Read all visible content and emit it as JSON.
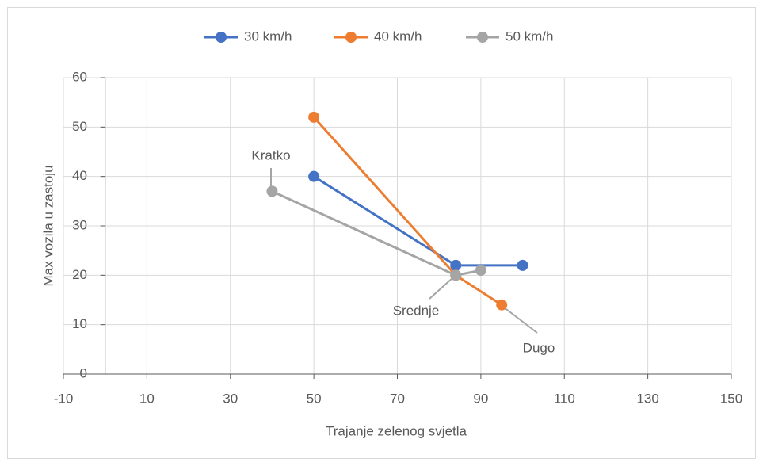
{
  "chart_data": {
    "type": "line",
    "xlabel": "Trajanje zelenog svjetla",
    "ylabel": "Max vozila u zastoju",
    "series": [
      {
        "name": "30 km/h",
        "color": "#4472c4",
        "x": [
          50,
          84,
          100
        ],
        "values": [
          40,
          22,
          22
        ]
      },
      {
        "name": "40 km/h",
        "color": "#ed7d31",
        "x": [
          50,
          84,
          95
        ],
        "values": [
          52,
          20,
          14
        ]
      },
      {
        "name": "50 km/h",
        "color": "#a5a5a5",
        "x": [
          40,
          84,
          90
        ],
        "values": [
          37,
          20,
          21
        ]
      }
    ],
    "annotations": [
      "Kratko",
      "Srednje",
      "Dugo"
    ],
    "xlim": [
      -10,
      150
    ],
    "xticks": [
      -10,
      10,
      30,
      50,
      70,
      90,
      110,
      130,
      150
    ],
    "ylim": [
      0,
      60
    ],
    "yticks": [
      0,
      10,
      20,
      30,
      40,
      50,
      60
    ],
    "grid": true,
    "legend": "top"
  }
}
